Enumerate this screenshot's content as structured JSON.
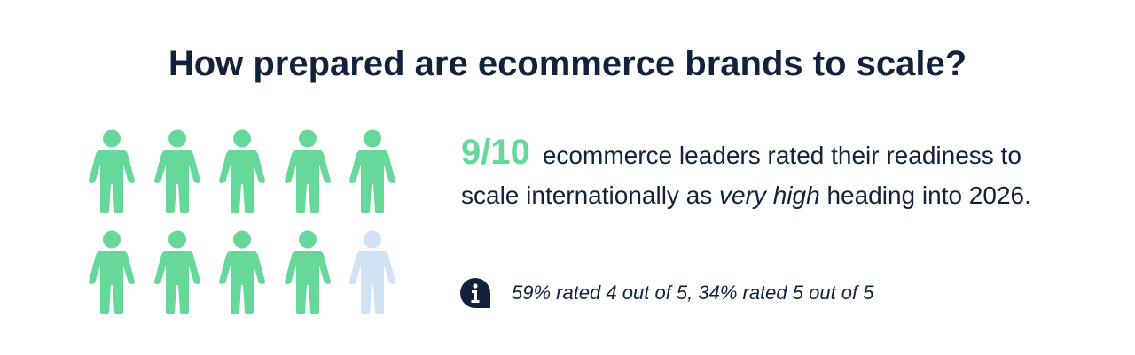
{
  "title": "How prepared are ecommerce brands to scale?",
  "people": {
    "total": 10,
    "highlighted": 9,
    "colors": {
      "highlighted": "#66d99a",
      "other": "#cfe3f5"
    }
  },
  "stat": {
    "value": "9/10",
    "text_before": "ecommerce leaders rated their readiness to scale internationally as ",
    "emphasis": "very high",
    "text_after": " heading into 2026."
  },
  "note": {
    "icon": "info-icon",
    "text": "59% rated 4 out of 5, 34% rated 5 out of 5"
  },
  "colors": {
    "navy": "#14213d",
    "green": "#66d99a"
  }
}
